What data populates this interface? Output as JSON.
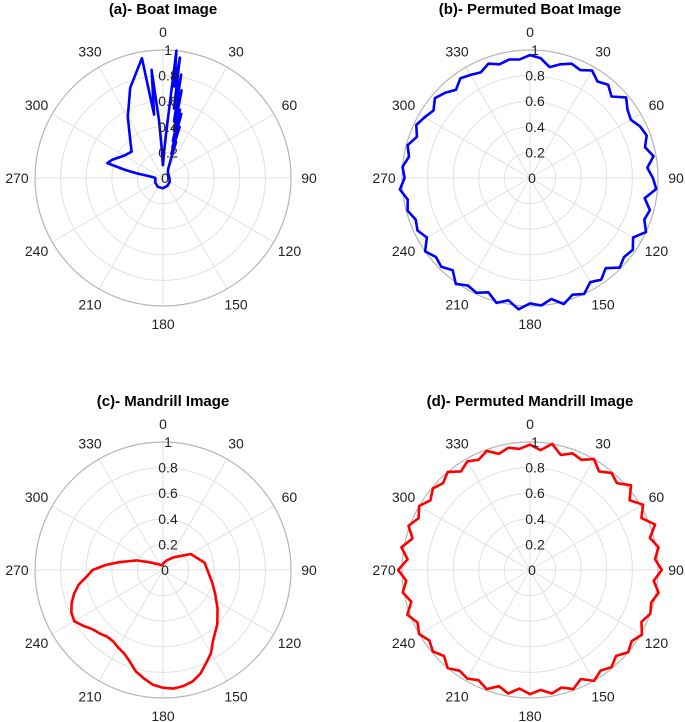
{
  "chart_data": [
    {
      "type": "polar",
      "title": "(a)- Boat Image",
      "color": "#0000ff",
      "rlim": [
        0,
        1
      ],
      "radial_ticks": [
        "0",
        "0.2",
        "0.4",
        "0.6",
        "0.8",
        "1"
      ],
      "angle_ticks": [
        "0",
        "30",
        "60",
        "90",
        "120",
        "150",
        "180",
        "210",
        "240",
        "270",
        "300",
        "330"
      ],
      "theta_zero": "top",
      "theta_direction": "clockwise",
      "grid": true,
      "series": [
        {
          "theta": [
            0,
            2,
            4,
            6,
            7,
            8,
            9,
            10,
            11,
            12,
            13,
            14,
            15,
            16,
            17,
            18,
            19,
            20,
            22,
            25,
            30,
            40,
            60,
            90,
            120,
            150,
            180,
            210,
            240,
            260,
            270,
            275,
            278,
            280,
            282,
            285,
            290,
            300,
            310,
            320,
            330,
            340,
            350,
            352,
            354,
            356,
            358,
            359
          ],
          "r": [
            0.1,
            0.18,
            0.35,
            1.0,
            0.72,
            0.95,
            0.55,
            0.82,
            0.45,
            0.7,
            0.38,
            0.55,
            0.3,
            0.52,
            0.25,
            0.42,
            0.2,
            0.3,
            0.18,
            0.12,
            0.08,
            0.06,
            0.05,
            0.05,
            0.06,
            0.07,
            0.08,
            0.08,
            0.07,
            0.06,
            0.06,
            0.08,
            0.12,
            0.2,
            0.3,
            0.45,
            0.42,
            0.35,
            0.32,
            0.4,
            0.55,
            0.75,
            0.95,
            0.5,
            0.85,
            0.45,
            0.2,
            0.1
          ]
        }
      ]
    },
    {
      "type": "polar",
      "title": "(b)- Permuted Boat Image",
      "color": "#0000ff",
      "rlim": [
        0,
        1
      ],
      "radial_ticks": [
        "0",
        "0.2",
        "0.4",
        "0.6",
        "0.8",
        "1"
      ],
      "angle_ticks": [
        "0",
        "30",
        "60",
        "90",
        "120",
        "150",
        "180",
        "210",
        "240",
        "270",
        "300",
        "330"
      ],
      "theta_zero": "top",
      "theta_direction": "clockwise",
      "grid": true,
      "series": [
        {
          "theta": [
            0,
            5,
            10,
            15,
            20,
            25,
            30,
            35,
            40,
            45,
            50,
            55,
            60,
            65,
            70,
            75,
            80,
            85,
            90,
            95,
            100,
            105,
            110,
            115,
            120,
            125,
            130,
            135,
            140,
            145,
            150,
            155,
            160,
            165,
            170,
            175,
            180,
            185,
            190,
            195,
            200,
            205,
            210,
            215,
            220,
            225,
            230,
            235,
            240,
            245,
            250,
            255,
            260,
            265,
            270,
            275,
            280,
            285,
            290,
            295,
            300,
            305,
            310,
            315,
            320,
            325,
            330,
            335,
            340,
            345,
            350,
            355
          ],
          "r": [
            0.96,
            0.94,
            0.88,
            0.92,
            0.95,
            0.93,
            0.97,
            0.92,
            0.95,
            0.9,
            0.98,
            0.93,
            0.91,
            0.95,
            0.97,
            0.93,
            0.98,
            0.92,
            0.96,
            0.99,
            0.91,
            0.97,
            0.95,
            1.0,
            0.93,
            0.98,
            0.96,
            0.99,
            0.92,
            0.97,
            0.94,
            1.0,
            0.97,
            1.02,
            0.96,
            1.0,
            0.98,
            1.03,
            0.97,
            1.01,
            0.95,
            0.99,
            0.97,
            1.01,
            0.94,
            0.98,
            0.96,
            1.0,
            0.93,
            0.97,
            0.95,
            0.99,
            0.97,
            1.02,
            0.98,
            1.0,
            0.96,
            0.99,
            0.94,
            0.98,
            0.95,
            0.92,
            0.97,
            0.94,
            0.9,
            0.95,
            0.93,
            0.91,
            0.95,
            0.92,
            0.94,
            0.93
          ]
        }
      ]
    },
    {
      "type": "polar",
      "title": "(c)- Mandrill Image",
      "color": "#ff0000",
      "rlim": [
        0,
        1
      ],
      "radial_ticks": [
        "0",
        "0.2",
        "0.4",
        "0.6",
        "0.8",
        "1"
      ],
      "angle_ticks": [
        "0",
        "30",
        "60",
        "90",
        "120",
        "150",
        "180",
        "210",
        "240",
        "270",
        "300",
        "330"
      ],
      "theta_zero": "top",
      "theta_direction": "clockwise",
      "grid": true,
      "series": [
        {
          "theta": [
            0,
            20,
            40,
            60,
            80,
            95,
            105,
            115,
            125,
            135,
            145,
            150,
            155,
            160,
            165,
            170,
            175,
            180,
            185,
            190,
            195,
            200,
            205,
            210,
            215,
            220,
            225,
            230,
            235,
            240,
            245,
            250,
            255,
            260,
            265,
            270,
            275,
            280,
            290,
            300,
            320,
            340,
            355
          ],
          "r": [
            0.05,
            0.08,
            0.13,
            0.25,
            0.33,
            0.36,
            0.4,
            0.45,
            0.52,
            0.6,
            0.68,
            0.75,
            0.8,
            0.86,
            0.9,
            0.92,
            0.93,
            0.92,
            0.9,
            0.86,
            0.82,
            0.76,
            0.72,
            0.7,
            0.68,
            0.68,
            0.7,
            0.72,
            0.76,
            0.8,
            0.79,
            0.76,
            0.72,
            0.67,
            0.6,
            0.55,
            0.45,
            0.35,
            0.22,
            0.12,
            0.06,
            0.04,
            0.04
          ]
        }
      ]
    },
    {
      "type": "polar",
      "title": "(d)- Permuted Mandrill Image",
      "color": "#ff0000",
      "rlim": [
        0,
        1
      ],
      "radial_ticks": [
        "0",
        "0.2",
        "0.4",
        "0.6",
        "0.8",
        "1"
      ],
      "angle_ticks": [
        "0",
        "30",
        "60",
        "90",
        "120",
        "150",
        "180",
        "210",
        "240",
        "270",
        "300",
        "330"
      ],
      "theta_zero": "top",
      "theta_direction": "clockwise",
      "grid": true,
      "series": [
        {
          "theta": [
            0,
            5,
            10,
            15,
            20,
            25,
            30,
            35,
            40,
            45,
            50,
            55,
            60,
            65,
            70,
            75,
            80,
            85,
            90,
            95,
            100,
            105,
            110,
            115,
            120,
            125,
            130,
            135,
            140,
            145,
            150,
            155,
            160,
            165,
            170,
            175,
            180,
            185,
            190,
            195,
            200,
            205,
            210,
            215,
            220,
            225,
            230,
            235,
            240,
            245,
            250,
            255,
            260,
            265,
            270,
            275,
            280,
            285,
            290,
            295,
            300,
            305,
            310,
            315,
            320,
            325,
            330,
            335,
            340,
            345,
            350,
            355
          ],
          "r": [
            0.98,
            0.94,
            1.0,
            0.93,
            0.97,
            0.95,
            1.0,
            0.94,
            0.99,
            0.96,
            1.03,
            0.95,
            1.02,
            0.96,
            1.04,
            0.97,
            1.02,
            0.98,
            1.03,
            0.97,
            1.02,
            0.98,
            1.0,
            0.96,
            1.01,
            0.97,
            1.0,
            0.95,
            0.99,
            0.96,
            1.0,
            0.94,
            0.99,
            0.95,
            0.98,
            0.94,
            0.97,
            0.93,
            0.98,
            0.94,
            0.99,
            0.95,
            0.98,
            0.96,
            1.0,
            0.95,
            0.99,
            0.96,
            1.0,
            0.97,
            1.02,
            0.96,
            1.01,
            0.97,
            1.03,
            0.96,
            1.02,
            0.95,
            1.01,
            0.96,
            1.0,
            0.95,
            0.99,
            0.96,
            1.0,
            0.94,
            0.98,
            0.95,
            0.99,
            0.94,
            0.97,
            0.95
          ]
        }
      ]
    }
  ]
}
